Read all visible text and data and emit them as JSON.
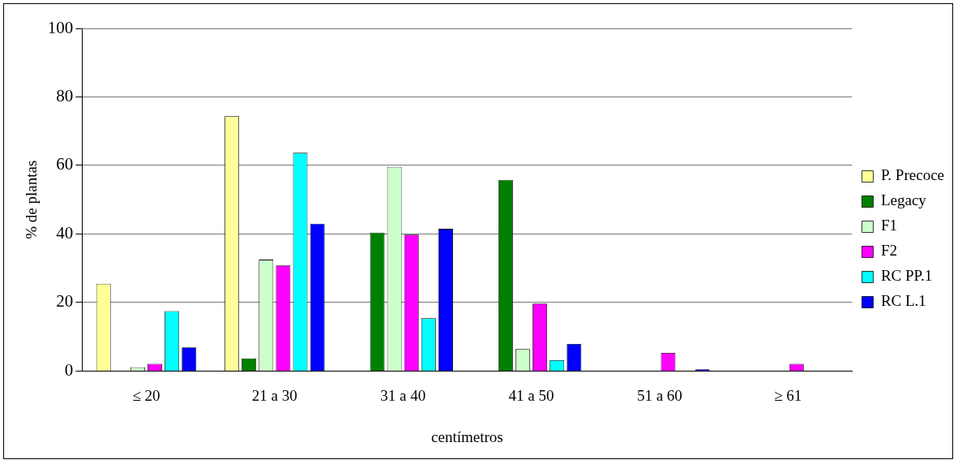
{
  "chart_data": {
    "type": "bar",
    "xlabel": "centímetros",
    "ylabel": "% de plantas",
    "categories": [
      "≤ 20",
      "21 a 30",
      "31 a 40",
      "41 a 50",
      "51 a 60",
      "≥ 61"
    ],
    "series": [
      {
        "name": "P. Precoce",
        "color": "#ffff99",
        "values": [
          25.5,
          74.4,
          0,
          0,
          0,
          0
        ]
      },
      {
        "name": "Legacy",
        "color": "#008000",
        "values": [
          0,
          3.7,
          40.4,
          55.8,
          0,
          0
        ]
      },
      {
        "name": "F1",
        "color": "#ccffcc",
        "values": [
          1.1,
          32.5,
          59.6,
          6.4,
          0,
          0
        ]
      },
      {
        "name": "F2",
        "color": "#ff00ff",
        "values": [
          2.1,
          30.8,
          39.8,
          19.7,
          5.3,
          2.1
        ]
      },
      {
        "name": "RC PP.1",
        "color": "#00ffff",
        "values": [
          17.5,
          63.7,
          15.4,
          3.2,
          0,
          0
        ]
      },
      {
        "name": "RC L.1",
        "color": "#0000ff",
        "values": [
          6.9,
          43.0,
          41.5,
          7.9,
          0.5,
          0
        ]
      }
    ],
    "ylim": [
      0,
      100
    ],
    "yticks": [
      0,
      20,
      40,
      60,
      80,
      100
    ],
    "grid": "y",
    "legend": "right"
  }
}
